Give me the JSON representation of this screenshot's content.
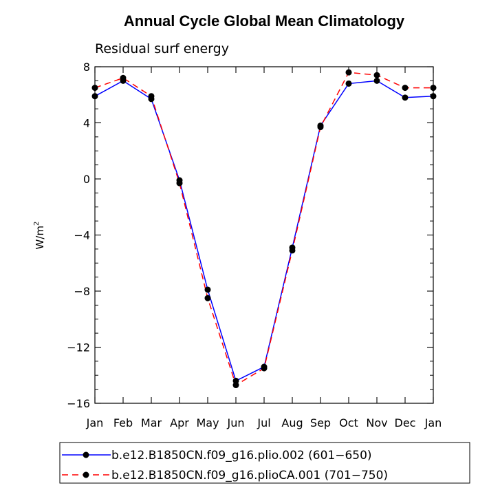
{
  "chart_data": {
    "type": "line",
    "title": "Annual Cycle Global Mean Climatology",
    "subtitle": "Residual surf energy",
    "xlabel": "",
    "ylabel": "W/m",
    "ylabel_superscript": "2",
    "categories": [
      "Jan",
      "Feb",
      "Mar",
      "Apr",
      "May",
      "Jun",
      "Jul",
      "Aug",
      "Sep",
      "Oct",
      "Nov",
      "Dec",
      "Jan"
    ],
    "ylim": [
      -16,
      8
    ],
    "yticks": [
      8,
      4,
      0,
      -4,
      -8,
      -12,
      -16
    ],
    "ytick_labels": [
      "8",
      "4",
      "0",
      "−4",
      "−8",
      "−12",
      "−16"
    ],
    "series": [
      {
        "name": "b.e12.B1850CN.f09_g16.plio.002 (601−650)",
        "color": "#0000ff",
        "dash": "solid",
        "values": [
          5.9,
          7.0,
          5.7,
          -0.1,
          -7.9,
          -14.4,
          -13.4,
          -4.9,
          3.8,
          6.8,
          7.0,
          5.8,
          5.9
        ]
      },
      {
        "name": "b.e12.B1850CN.f09_g16.plioCA.001 (701−750)",
        "color": "#ff0000",
        "dash": "dashed",
        "values": [
          6.5,
          7.2,
          5.9,
          -0.3,
          -8.5,
          -14.7,
          -13.5,
          -5.1,
          3.7,
          7.6,
          7.4,
          6.5,
          6.5
        ]
      }
    ]
  }
}
